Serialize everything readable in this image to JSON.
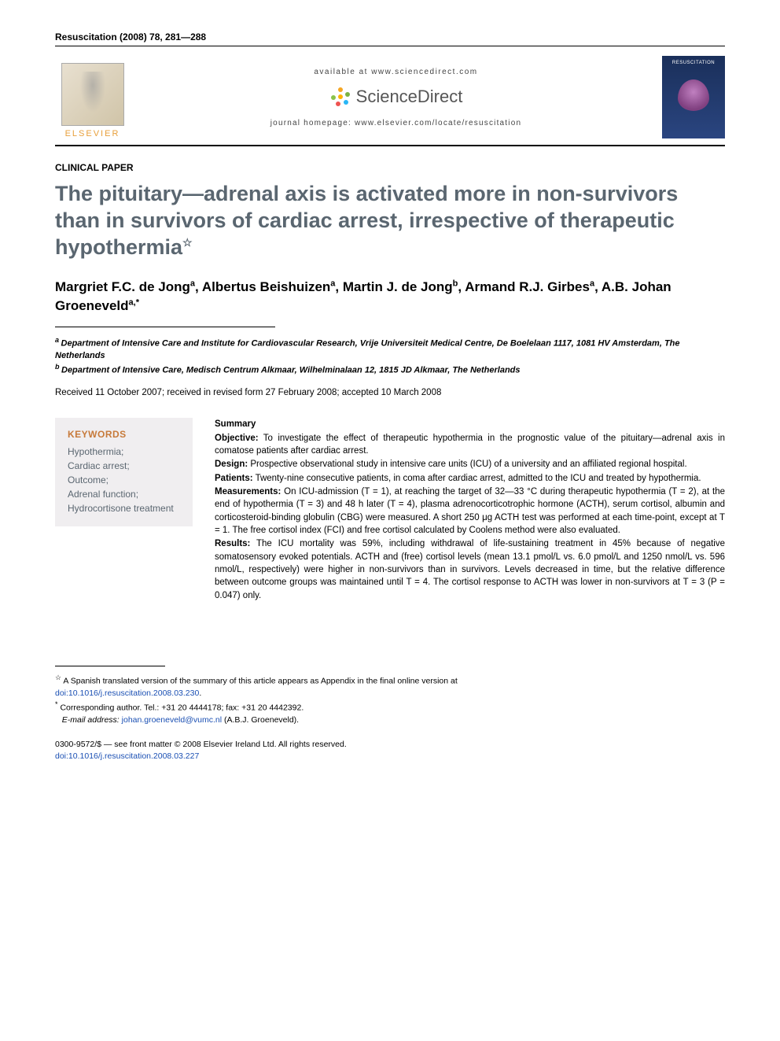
{
  "journal_ref": "Resuscitation (2008) 78, 281—288",
  "header": {
    "available": "available at www.sciencedirect.com",
    "sd_brand": "ScienceDirect",
    "homepage_label": "journal homepage: ",
    "homepage_url": "www.elsevier.com/locate/resuscitation",
    "elsevier": "ELSEVIER",
    "cover_title": "RESUSCITATION",
    "burst_colors": [
      "#f5a623",
      "#7cb342",
      "#29b6f6",
      "#ef5350",
      "#8bc34a",
      "#ffb300"
    ]
  },
  "section": "CLINICAL PAPER",
  "title": "The pituitary—adrenal axis is activated more in non-survivors than in survivors of cardiac arrest, irrespective of therapeutic hypothermia",
  "title_star": "☆",
  "authors_html": "Margriet F.C. de Jong|a|, Albertus Beishuizen|a|, Martin J. de Jong|b|, Armand R.J. Girbes|a|, A.B. Johan Groeneveld|a,*",
  "authors": [
    {
      "name": "Margriet F.C. de Jong",
      "sup": "a"
    },
    {
      "name": "Albertus Beishuizen",
      "sup": "a"
    },
    {
      "name": "Martin J. de Jong",
      "sup": "b"
    },
    {
      "name": "Armand R.J. Girbes",
      "sup": "a"
    },
    {
      "name": "A.B. Johan Groeneveld",
      "sup": "a,*"
    }
  ],
  "affiliations": [
    {
      "sup": "a",
      "text": "Department of Intensive Care and Institute for Cardiovascular Research, Vrije Universiteit Medical Centre, De Boelelaan 1117, 1081 HV Amsterdam, The Netherlands"
    },
    {
      "sup": "b",
      "text": "Department of Intensive Care, Medisch Centrum Alkmaar, Wilhelminalaan 12, 1815 JD Alkmaar, The Netherlands"
    }
  ],
  "dates": "Received 11 October 2007; received in revised form 27 February 2008; accepted 10 March 2008",
  "keywords": {
    "heading": "KEYWORDS",
    "items": [
      "Hypothermia;",
      "Cardiac arrest;",
      "Outcome;",
      "Adrenal function;",
      "Hydrocortisone treatment"
    ]
  },
  "summary": {
    "heading": "Summary",
    "sections": [
      {
        "label": "Objective:",
        "text": " To investigate the effect of therapeutic hypothermia in the prognostic value of the pituitary—adrenal axis in comatose patients after cardiac arrest."
      },
      {
        "label": "Design:",
        "text": " Prospective observational study in intensive care units (ICU) of a university and an affiliated regional hospital."
      },
      {
        "label": "Patients:",
        "text": " Twenty-nine consecutive patients, in coma after cardiac arrest, admitted to the ICU and treated by hypothermia."
      },
      {
        "label": "Measurements:",
        "text": " On ICU-admission (T = 1), at reaching the target of 32—33 °C during therapeutic hypothermia (T = 2), at the end of hypothermia (T = 3) and 48 h later (T = 4), plasma adrenocorticotrophic hormone (ACTH), serum cortisol, albumin and corticosteroid-binding globulin (CBG) were measured. A short 250 μg ACTH test was performed at each time-point, except at T = 1. The free cortisol index (FCI) and free cortisol calculated by Coolens method were also evaluated."
      },
      {
        "label": "Results:",
        "text": " The ICU mortality was 59%, including withdrawal of life-sustaining treatment in 45% because of negative somatosensory evoked potentials. ACTH and (free) cortisol levels (mean 13.1 pmol/L vs. 6.0 pmol/L and 1250 nmol/L vs. 596 nmol/L, respectively) were higher in non-survivors than in survivors. Levels decreased in time, but the relative difference between outcome groups was maintained until T = 4. The cortisol response to ACTH was lower in non-survivors at T = 3 (P = 0.047) only."
      }
    ]
  },
  "footnotes": {
    "star": "A Spanish translated version of the summary of this article appears as Appendix in the final online version at",
    "star_doi": "doi:10.1016/j.resuscitation.2008.03.230",
    "corr": "Corresponding author. Tel.: +31 20 4444178; fax: +31 20 4442392.",
    "email_label": "E-mail address:",
    "email": "johan.groeneveld@vumc.nl",
    "email_paren": "(A.B.J. Groeneveld)."
  },
  "copyright": {
    "line": "0300-9572/$ — see front matter © 2008 Elsevier Ireland Ltd. All rights reserved.",
    "doi": "doi:10.1016/j.resuscitation.2008.03.227"
  },
  "colors": {
    "title_gray": "#5a6670",
    "kw_orange": "#c77a3a",
    "kw_bg": "#f0eef0",
    "link_blue": "#1a4fb3",
    "elsevier_orange": "#e8a03c"
  }
}
